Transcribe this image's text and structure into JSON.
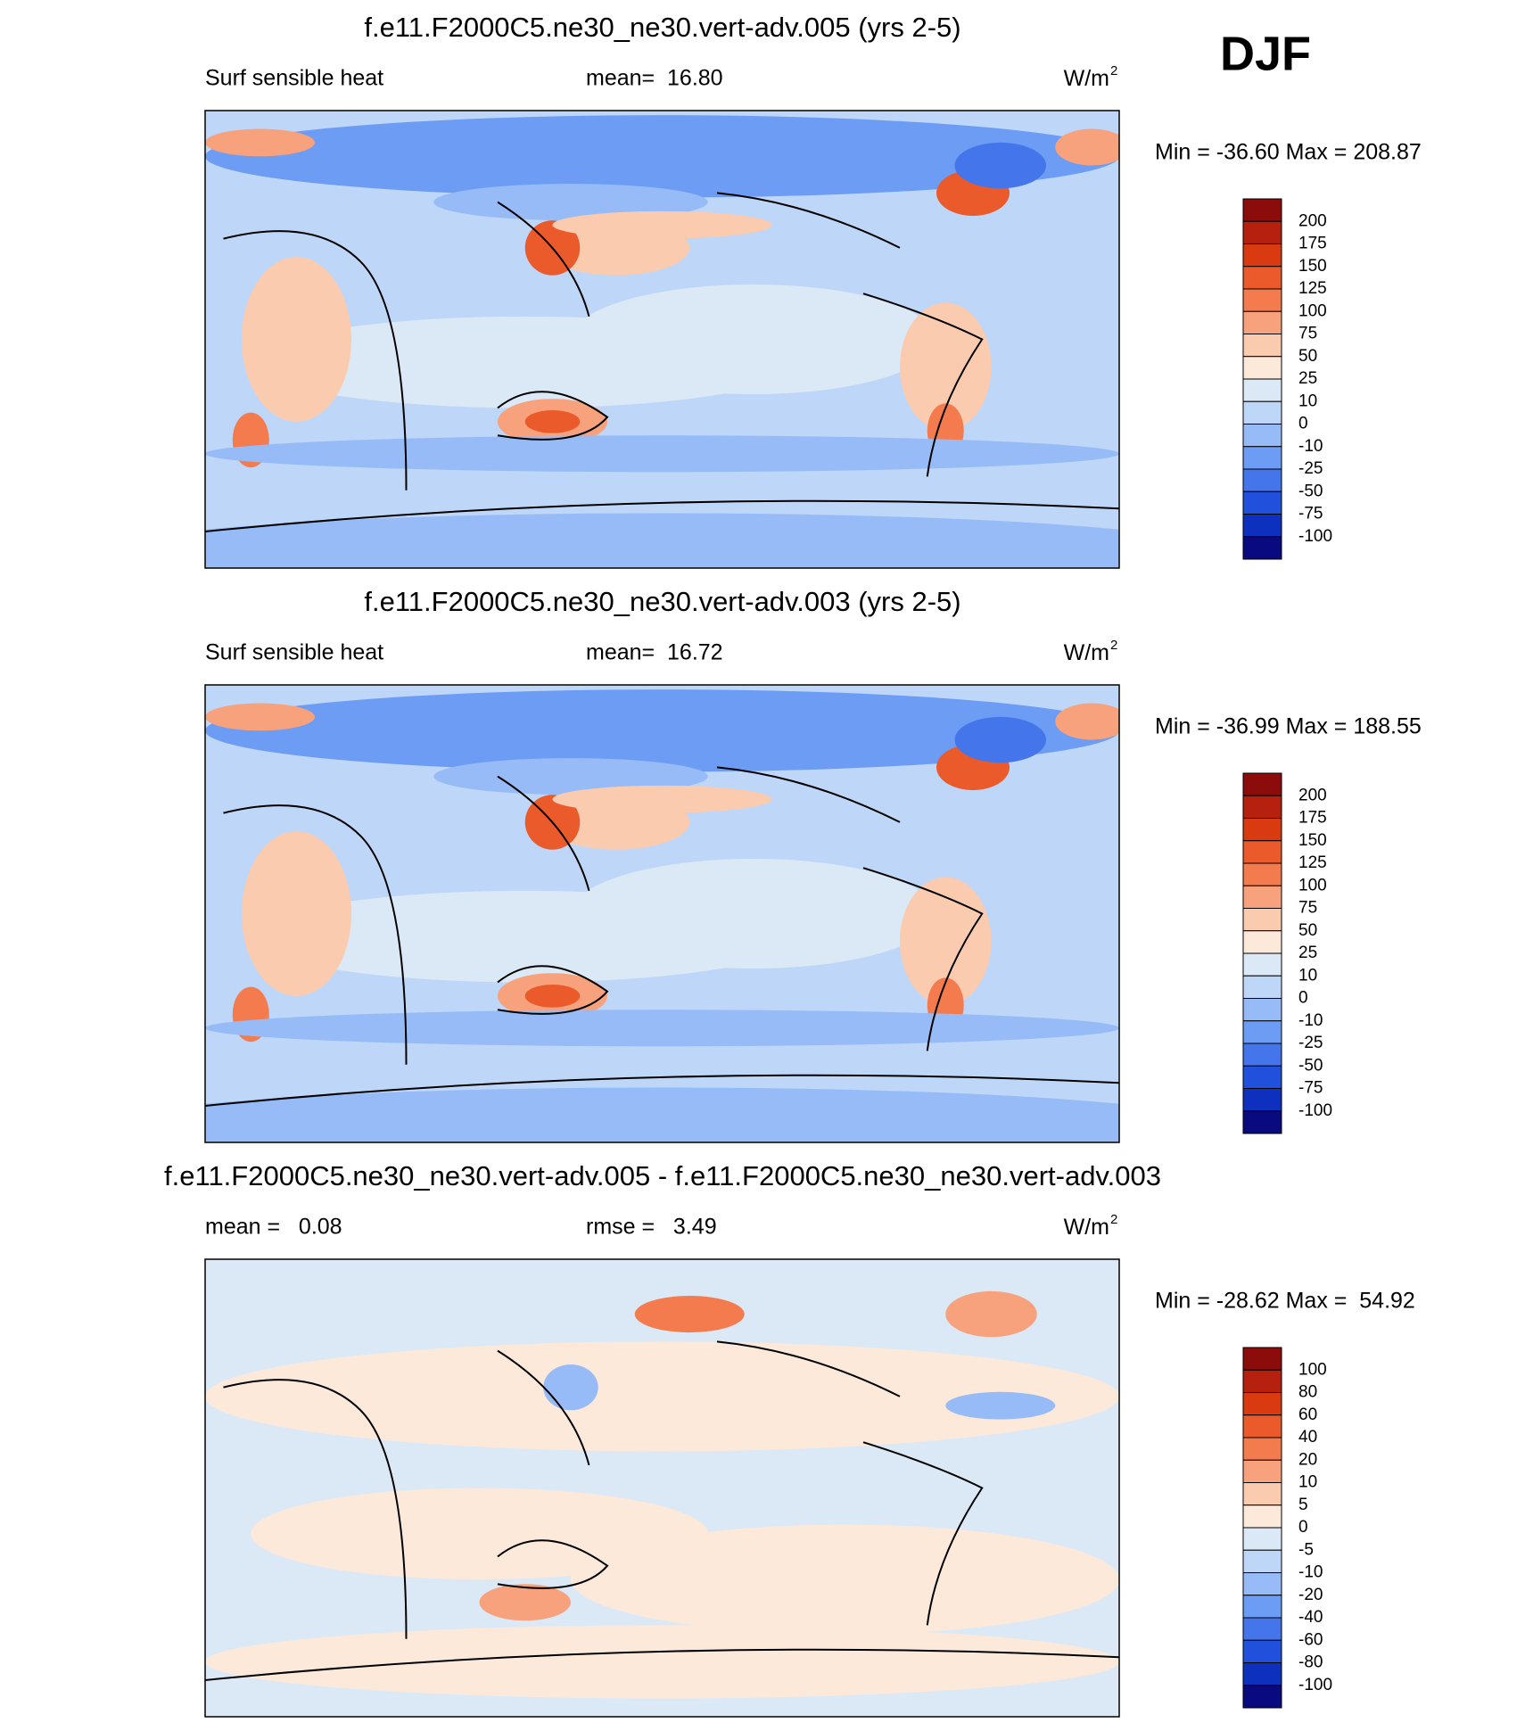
{
  "season": "DJF",
  "panels": [
    {
      "title": "f.e11.F2000C5.ne30_ne30.vert-adv.005 (yrs 2-5)",
      "left": "Surf sensible heat",
      "center": "mean=  16.80",
      "unit": {
        "base": "W/m",
        "exponent": "2"
      },
      "minmax": "Min = -36.60 Max = 208.87",
      "colorbar": {
        "colors": [
          "#8c0c0c",
          "#b5200f",
          "#d93a10",
          "#ea5a2a",
          "#f47b4e",
          "#f7a27d",
          "#fbcbb0",
          "#fde9da",
          "#dbe9f7",
          "#bed6f7",
          "#96bbf7",
          "#6d9cf4",
          "#4475ea",
          "#2150dd",
          "#0d30be",
          "#0a0a80"
        ],
        "labels": [
          200,
          175,
          150,
          125,
          100,
          75,
          50,
          25,
          10,
          0,
          -10,
          -25,
          -50,
          -75,
          -100
        ]
      }
    },
    {
      "title": "f.e11.F2000C5.ne30_ne30.vert-adv.003 (yrs 2-5)",
      "left": "Surf sensible heat",
      "center": "mean=  16.72",
      "unit": {
        "base": "W/m",
        "exponent": "2"
      },
      "minmax": "Min = -36.99 Max = 188.55",
      "colorbar": {
        "colors": [
          "#8c0c0c",
          "#b5200f",
          "#d93a10",
          "#ea5a2a",
          "#f47b4e",
          "#f7a27d",
          "#fbcbb0",
          "#fde9da",
          "#dbe9f7",
          "#bed6f7",
          "#96bbf7",
          "#6d9cf4",
          "#4475ea",
          "#2150dd",
          "#0d30be",
          "#0a0a80"
        ],
        "labels": [
          200,
          175,
          150,
          125,
          100,
          75,
          50,
          25,
          10,
          0,
          -10,
          -25,
          -50,
          -75,
          -100
        ]
      }
    },
    {
      "title": "f.e11.F2000C5.ne30_ne30.vert-adv.005 - f.e11.F2000C5.ne30_ne30.vert-adv.003",
      "left": "mean =   0.08",
      "center": "rmse =   3.49",
      "unit": {
        "base": "W/m",
        "exponent": "2"
      },
      "minmax": "Min = -28.62 Max =  54.92",
      "colorbar": {
        "colors": [
          "#8c0c0c",
          "#b5200f",
          "#d93a10",
          "#ea5a2a",
          "#f47b4e",
          "#f7a27d",
          "#fbcbb0",
          "#fde9da",
          "#dbe9f7",
          "#bed6f7",
          "#96bbf7",
          "#6d9cf4",
          "#4475ea",
          "#2150dd",
          "#0d30be",
          "#0a0a80"
        ],
        "labels": [
          100,
          80,
          60,
          40,
          20,
          10,
          5,
          0,
          -5,
          -10,
          -20,
          -40,
          -60,
          -80,
          -100
        ]
      }
    }
  ]
}
